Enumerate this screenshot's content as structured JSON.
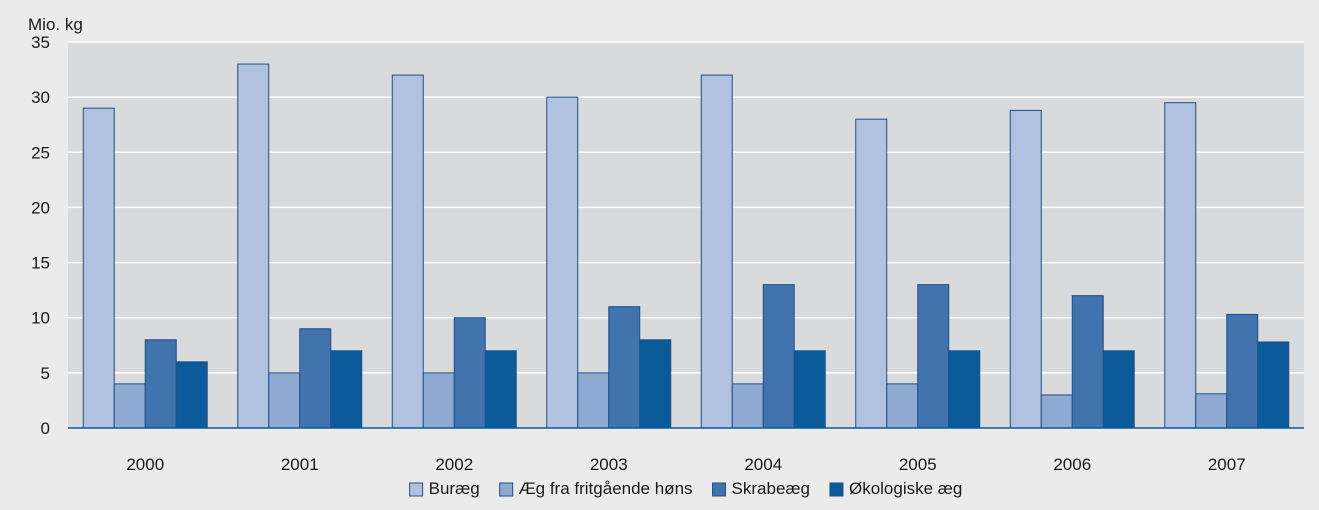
{
  "chart_data": {
    "type": "bar",
    "unit_label": "Mio. kg",
    "categories": [
      "2000",
      "2001",
      "2002",
      "2003",
      "2004",
      "2005",
      "2006",
      "2007"
    ],
    "series": [
      {
        "name": "Buræg",
        "color": "#b0c2e0",
        "values": [
          29,
          33,
          32,
          30,
          32,
          28,
          28.8,
          29.5
        ]
      },
      {
        "name": "Æg fra fritgående høns",
        "color": "#8ea9d2",
        "values": [
          4,
          5,
          5,
          5,
          4,
          4,
          3,
          3.1
        ]
      },
      {
        "name": "Skrabeæg",
        "color": "#4174ae",
        "values": [
          8,
          9,
          10,
          11,
          13,
          13,
          12,
          10.3
        ]
      },
      {
        "name": "Økologiske æg",
        "color": "#0b5a9a",
        "values": [
          6,
          7,
          7,
          8,
          7,
          7,
          7,
          7.8
        ]
      }
    ],
    "ylim": [
      0,
      35
    ],
    "yticks": [
      0,
      5,
      10,
      15,
      20,
      25,
      30,
      35
    ],
    "grid": true,
    "legend_position": "bottom"
  },
  "colors": {
    "page_background": "#ebebeb",
    "plot_background": "#d9dadb",
    "gridline": "#ffffff",
    "bar_outline": "#1f4f86",
    "axis_line": "#0b5a9a"
  }
}
